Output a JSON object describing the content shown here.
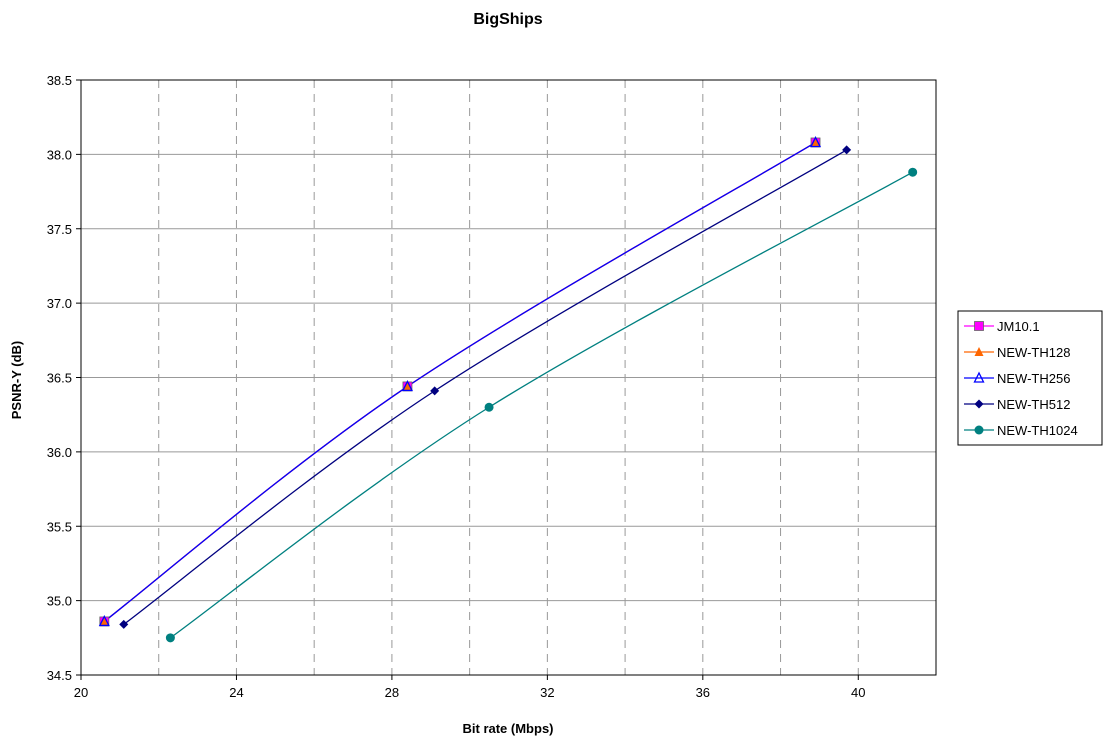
{
  "chart_data": {
    "type": "line",
    "title": "BigShips",
    "xlabel": "Bit rate (Mbps)",
    "ylabel": "PSNR-Y (dB)",
    "xlim": [
      20,
      42
    ],
    "ylim": [
      34.5,
      38.5
    ],
    "x_ticks": [
      "20",
      "24",
      "28",
      "32",
      "36",
      "40"
    ],
    "x_tick_values": [
      20,
      24,
      28,
      32,
      36,
      40
    ],
    "y_ticks": [
      "34.5",
      "35.0",
      "35.5",
      "36.0",
      "36.5",
      "37.0",
      "37.5",
      "38.0",
      "38.5"
    ],
    "y_tick_values": [
      34.5,
      35.0,
      35.5,
      36.0,
      36.5,
      37.0,
      37.5,
      38.0,
      38.5
    ],
    "grid": {
      "horizontal": "solid",
      "vertical": "dashed",
      "vertical_step": 2
    },
    "legend_position": "right",
    "series": [
      {
        "name": "JM10.1",
        "color": "#ff00ff",
        "marker": "square-filled",
        "points": [
          [
            20.6,
            34.86
          ],
          [
            28.4,
            36.44
          ],
          [
            38.9,
            38.08
          ]
        ]
      },
      {
        "name": "NEW-TH128",
        "color": "#ff6600",
        "marker": "triangle-filled",
        "points": [
          [
            20.6,
            34.86
          ],
          [
            28.4,
            36.44
          ],
          [
            38.9,
            38.08
          ]
        ]
      },
      {
        "name": "NEW-TH256",
        "color": "#0000ff",
        "marker": "triangle-open",
        "points": [
          [
            20.6,
            34.86
          ],
          [
            28.4,
            36.44
          ],
          [
            38.9,
            38.08
          ]
        ]
      },
      {
        "name": "NEW-TH512",
        "color": "#000080",
        "marker": "diamond-filled",
        "points": [
          [
            21.1,
            34.84
          ],
          [
            29.1,
            36.41
          ],
          [
            39.7,
            38.03
          ]
        ]
      },
      {
        "name": "NEW-TH1024",
        "color": "#008080",
        "marker": "circle-filled",
        "points": [
          [
            22.3,
            34.75
          ],
          [
            30.5,
            36.3
          ],
          [
            41.4,
            37.88
          ]
        ]
      }
    ]
  }
}
